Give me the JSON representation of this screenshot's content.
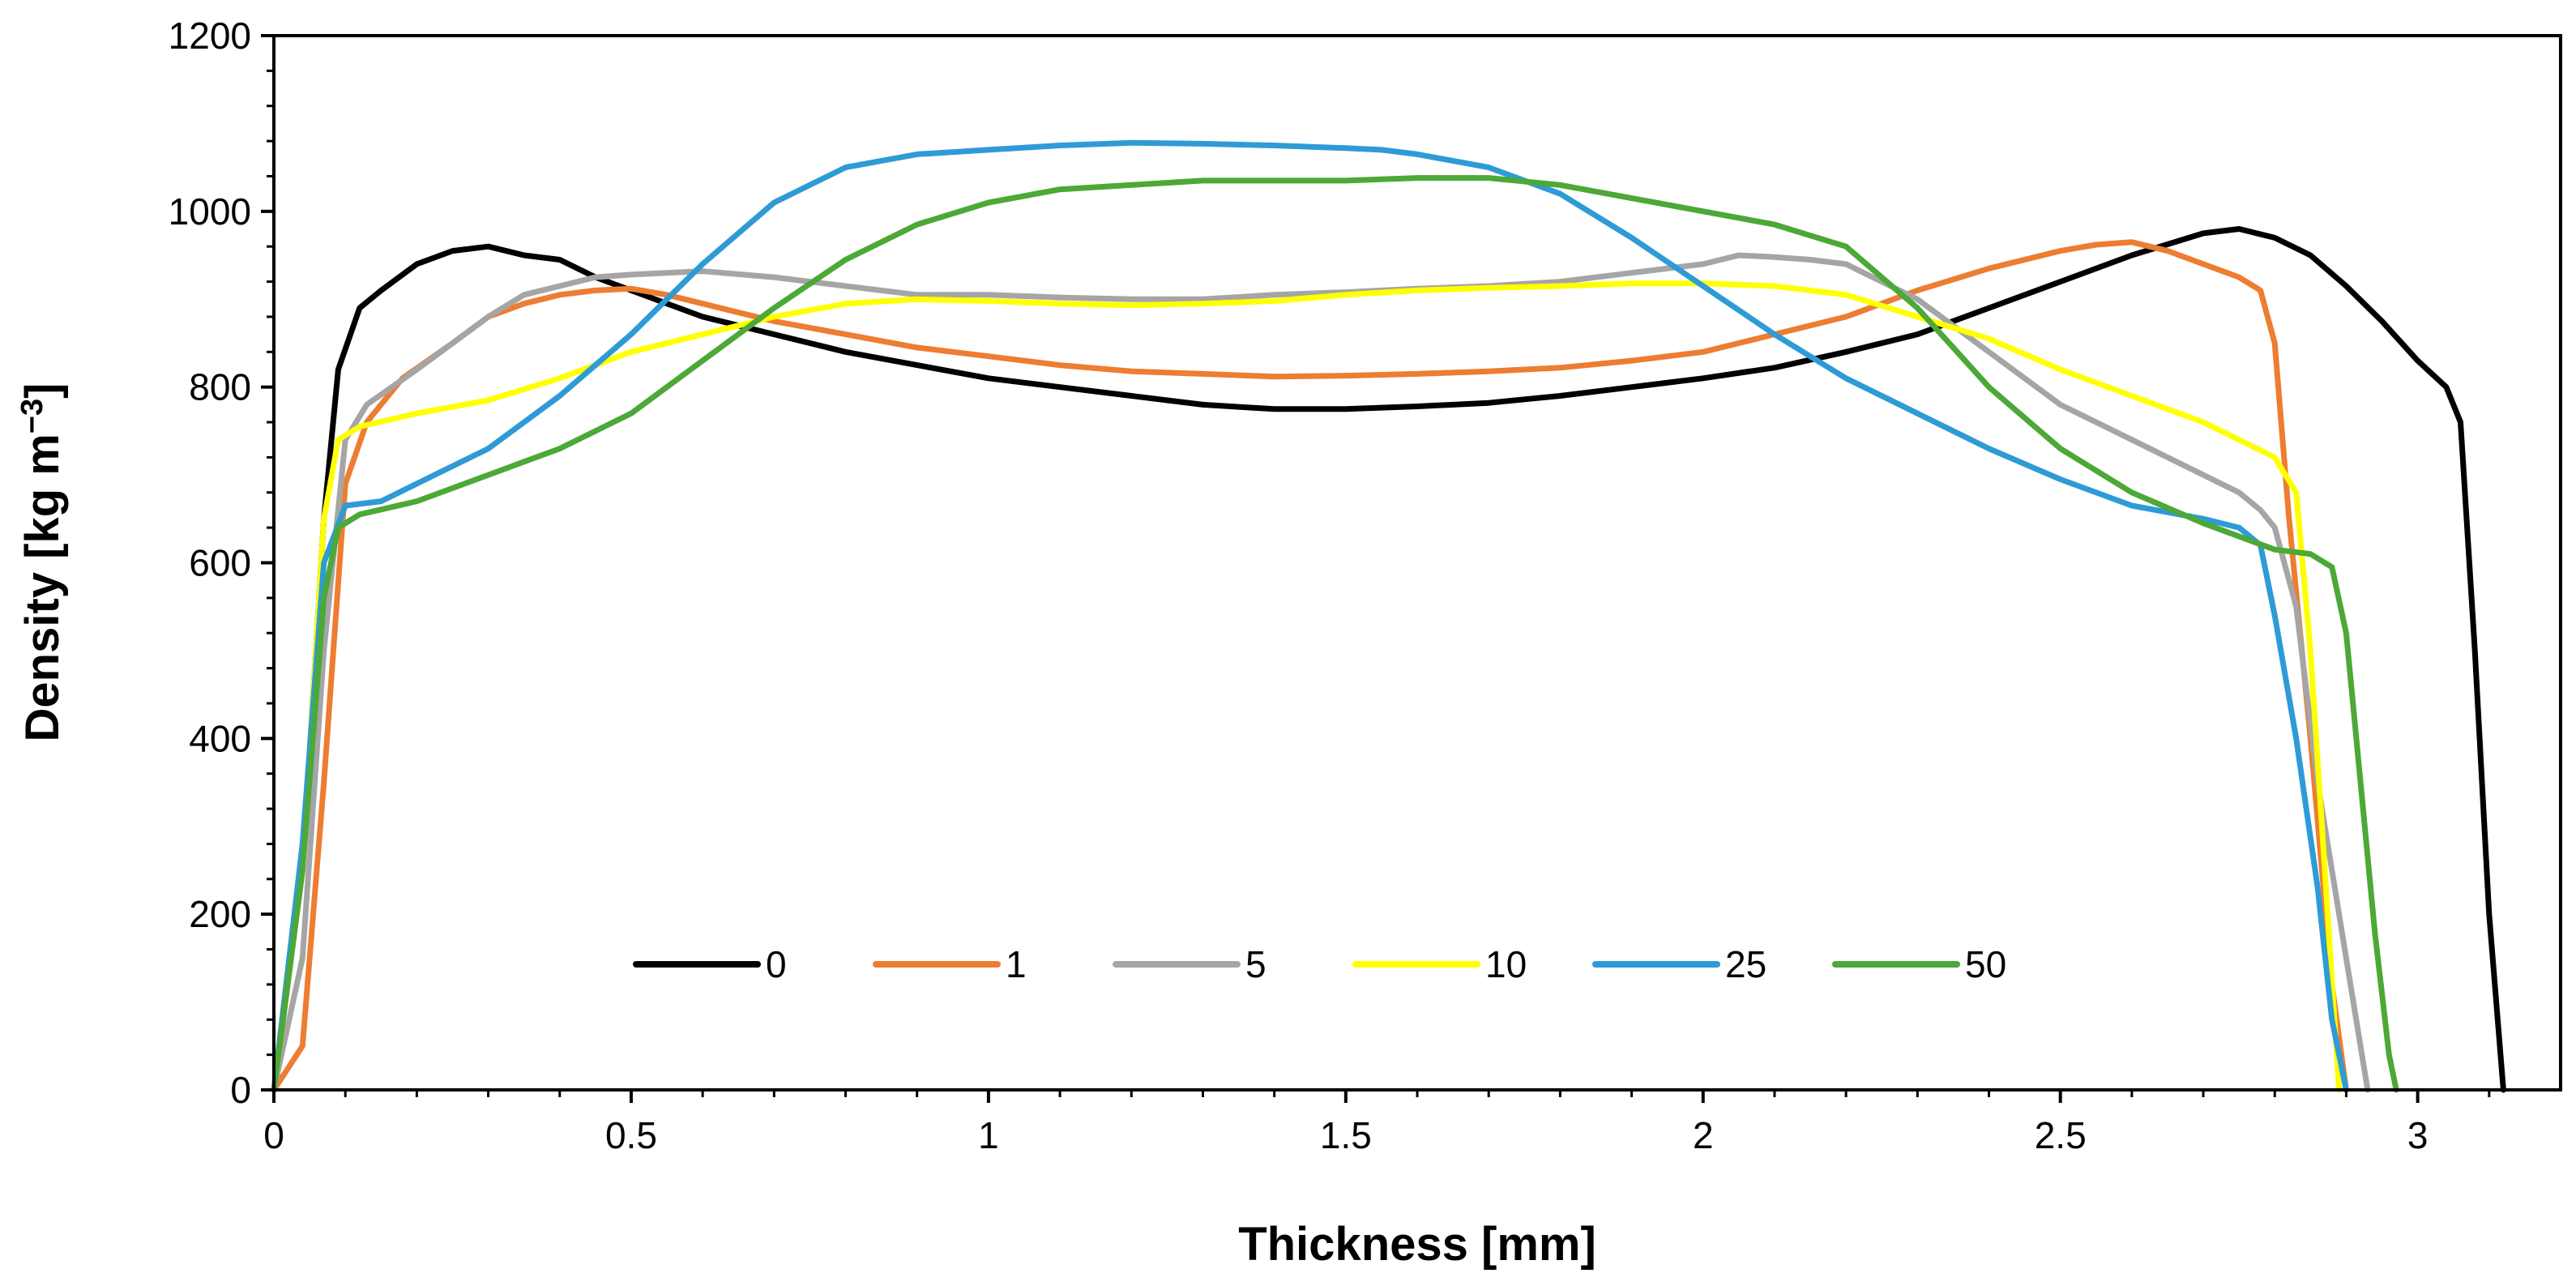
{
  "chart_data": {
    "type": "line",
    "title": "",
    "xlabel": "Thickness [mm]",
    "ylabel_main": "Density [kg m",
    "ylabel_sup": "−3",
    "ylabel_end": "]",
    "xlim": [
      0,
      3.2
    ],
    "ylim": [
      0,
      1200
    ],
    "x_ticks": [
      0,
      0.5,
      1,
      1.5,
      2,
      2.5,
      3
    ],
    "x_tick_labels": [
      "0",
      "0.5",
      "1",
      "1.5",
      "2",
      "2.5",
      "3"
    ],
    "y_ticks": [
      0,
      200,
      400,
      600,
      800,
      1000,
      1200
    ],
    "y_tick_labels": [
      "0",
      "200",
      "400",
      "600",
      "800",
      "1000",
      "1200"
    ],
    "grid": false,
    "legend_position": "bottom-center inside plot",
    "series": [
      {
        "name": "0",
        "color": "#000000",
        "points": [
          [
            0,
            0
          ],
          [
            0.04,
            250
          ],
          [
            0.07,
            650
          ],
          [
            0.09,
            820
          ],
          [
            0.12,
            890
          ],
          [
            0.15,
            910
          ],
          [
            0.2,
            940
          ],
          [
            0.25,
            955
          ],
          [
            0.3,
            960
          ],
          [
            0.35,
            950
          ],
          [
            0.4,
            945
          ],
          [
            0.45,
            925
          ],
          [
            0.5,
            910
          ],
          [
            0.6,
            880
          ],
          [
            0.7,
            860
          ],
          [
            0.8,
            840
          ],
          [
            0.9,
            825
          ],
          [
            1.0,
            810
          ],
          [
            1.1,
            800
          ],
          [
            1.2,
            790
          ],
          [
            1.3,
            780
          ],
          [
            1.4,
            775
          ],
          [
            1.5,
            775
          ],
          [
            1.6,
            778
          ],
          [
            1.7,
            782
          ],
          [
            1.8,
            790
          ],
          [
            1.9,
            800
          ],
          [
            2.0,
            810
          ],
          [
            2.1,
            822
          ],
          [
            2.2,
            840
          ],
          [
            2.3,
            860
          ],
          [
            2.4,
            890
          ],
          [
            2.5,
            920
          ],
          [
            2.6,
            950
          ],
          [
            2.7,
            975
          ],
          [
            2.75,
            980
          ],
          [
            2.8,
            970
          ],
          [
            2.85,
            950
          ],
          [
            2.9,
            915
          ],
          [
            2.95,
            875
          ],
          [
            3.0,
            830
          ],
          [
            3.04,
            800
          ],
          [
            3.06,
            760
          ],
          [
            3.08,
            500
          ],
          [
            3.1,
            200
          ],
          [
            3.12,
            0
          ]
        ]
      },
      {
        "name": "1",
        "color": "#ED7D31",
        "points": [
          [
            0,
            0
          ],
          [
            0.04,
            50
          ],
          [
            0.07,
            350
          ],
          [
            0.1,
            690
          ],
          [
            0.13,
            760
          ],
          [
            0.18,
            810
          ],
          [
            0.25,
            850
          ],
          [
            0.3,
            880
          ],
          [
            0.35,
            895
          ],
          [
            0.4,
            905
          ],
          [
            0.45,
            910
          ],
          [
            0.5,
            912
          ],
          [
            0.55,
            905
          ],
          [
            0.6,
            895
          ],
          [
            0.7,
            875
          ],
          [
            0.8,
            860
          ],
          [
            0.9,
            845
          ],
          [
            1.0,
            835
          ],
          [
            1.1,
            825
          ],
          [
            1.2,
            818
          ],
          [
            1.3,
            815
          ],
          [
            1.4,
            812
          ],
          [
            1.5,
            813
          ],
          [
            1.6,
            815
          ],
          [
            1.7,
            818
          ],
          [
            1.8,
            822
          ],
          [
            1.9,
            830
          ],
          [
            2.0,
            840
          ],
          [
            2.1,
            860
          ],
          [
            2.2,
            880
          ],
          [
            2.3,
            910
          ],
          [
            2.4,
            935
          ],
          [
            2.5,
            955
          ],
          [
            2.55,
            962
          ],
          [
            2.6,
            965
          ],
          [
            2.65,
            955
          ],
          [
            2.7,
            940
          ],
          [
            2.75,
            925
          ],
          [
            2.78,
            910
          ],
          [
            2.8,
            850
          ],
          [
            2.82,
            650
          ],
          [
            2.85,
            400
          ],
          [
            2.88,
            120
          ],
          [
            2.9,
            0
          ]
        ]
      },
      {
        "name": "5",
        "color": "#A5A5A5",
        "points": [
          [
            0,
            0
          ],
          [
            0.04,
            150
          ],
          [
            0.07,
            500
          ],
          [
            0.1,
            740
          ],
          [
            0.13,
            780
          ],
          [
            0.2,
            820
          ],
          [
            0.25,
            850
          ],
          [
            0.3,
            880
          ],
          [
            0.35,
            905
          ],
          [
            0.4,
            915
          ],
          [
            0.45,
            925
          ],
          [
            0.5,
            928
          ],
          [
            0.6,
            932
          ],
          [
            0.7,
            925
          ],
          [
            0.8,
            915
          ],
          [
            0.9,
            905
          ],
          [
            1.0,
            905
          ],
          [
            1.1,
            902
          ],
          [
            1.2,
            900
          ],
          [
            1.3,
            900
          ],
          [
            1.4,
            905
          ],
          [
            1.5,
            908
          ],
          [
            1.6,
            912
          ],
          [
            1.7,
            915
          ],
          [
            1.8,
            920
          ],
          [
            1.9,
            930
          ],
          [
            2.0,
            940
          ],
          [
            2.05,
            950
          ],
          [
            2.1,
            948
          ],
          [
            2.15,
            945
          ],
          [
            2.2,
            940
          ],
          [
            2.25,
            920
          ],
          [
            2.3,
            900
          ],
          [
            2.35,
            870
          ],
          [
            2.4,
            840
          ],
          [
            2.45,
            810
          ],
          [
            2.5,
            780
          ],
          [
            2.55,
            760
          ],
          [
            2.6,
            740
          ],
          [
            2.65,
            720
          ],
          [
            2.7,
            700
          ],
          [
            2.75,
            680
          ],
          [
            2.78,
            660
          ],
          [
            2.8,
            640
          ],
          [
            2.83,
            550
          ],
          [
            2.86,
            350
          ],
          [
            2.9,
            150
          ],
          [
            2.93,
            0
          ]
        ]
      },
      {
        "name": "10",
        "color": "#FFFF00",
        "points": [
          [
            0,
            0
          ],
          [
            0.04,
            250
          ],
          [
            0.07,
            650
          ],
          [
            0.09,
            740
          ],
          [
            0.12,
            755
          ],
          [
            0.2,
            770
          ],
          [
            0.3,
            785
          ],
          [
            0.4,
            810
          ],
          [
            0.5,
            840
          ],
          [
            0.6,
            860
          ],
          [
            0.7,
            880
          ],
          [
            0.8,
            895
          ],
          [
            0.9,
            900
          ],
          [
            1.0,
            898
          ],
          [
            1.1,
            895
          ],
          [
            1.2,
            893
          ],
          [
            1.3,
            895
          ],
          [
            1.4,
            898
          ],
          [
            1.5,
            905
          ],
          [
            1.6,
            910
          ],
          [
            1.7,
            913
          ],
          [
            1.8,
            915
          ],
          [
            1.9,
            918
          ],
          [
            2.0,
            918
          ],
          [
            2.1,
            915
          ],
          [
            2.2,
            905
          ],
          [
            2.3,
            880
          ],
          [
            2.4,
            855
          ],
          [
            2.5,
            820
          ],
          [
            2.6,
            790
          ],
          [
            2.7,
            760
          ],
          [
            2.75,
            740
          ],
          [
            2.8,
            720
          ],
          [
            2.83,
            680
          ],
          [
            2.85,
            500
          ],
          [
            2.87,
            250
          ],
          [
            2.89,
            0
          ]
        ]
      },
      {
        "name": "25",
        "color": "#2E9BD6",
        "points": [
          [
            0,
            0
          ],
          [
            0.04,
            280
          ],
          [
            0.07,
            600
          ],
          [
            0.1,
            665
          ],
          [
            0.15,
            670
          ],
          [
            0.2,
            690
          ],
          [
            0.3,
            730
          ],
          [
            0.4,
            790
          ],
          [
            0.5,
            860
          ],
          [
            0.6,
            940
          ],
          [
            0.65,
            975
          ],
          [
            0.7,
            1010
          ],
          [
            0.8,
            1050
          ],
          [
            0.9,
            1065
          ],
          [
            1.0,
            1070
          ],
          [
            1.1,
            1075
          ],
          [
            1.2,
            1078
          ],
          [
            1.3,
            1077
          ],
          [
            1.4,
            1075
          ],
          [
            1.5,
            1072
          ],
          [
            1.55,
            1070
          ],
          [
            1.6,
            1065
          ],
          [
            1.7,
            1050
          ],
          [
            1.8,
            1020
          ],
          [
            1.9,
            970
          ],
          [
            2.0,
            915
          ],
          [
            2.1,
            860
          ],
          [
            2.2,
            810
          ],
          [
            2.3,
            770
          ],
          [
            2.4,
            730
          ],
          [
            2.5,
            695
          ],
          [
            2.6,
            665
          ],
          [
            2.7,
            650
          ],
          [
            2.75,
            640
          ],
          [
            2.78,
            620
          ],
          [
            2.8,
            540
          ],
          [
            2.83,
            400
          ],
          [
            2.86,
            230
          ],
          [
            2.88,
            80
          ],
          [
            2.9,
            0
          ]
        ]
      },
      {
        "name": "50",
        "color": "#4CA837",
        "points": [
          [
            0,
            0
          ],
          [
            0.04,
            250
          ],
          [
            0.07,
            560
          ],
          [
            0.09,
            640
          ],
          [
            0.12,
            655
          ],
          [
            0.2,
            670
          ],
          [
            0.3,
            700
          ],
          [
            0.4,
            730
          ],
          [
            0.5,
            770
          ],
          [
            0.6,
            830
          ],
          [
            0.7,
            890
          ],
          [
            0.8,
            945
          ],
          [
            0.9,
            985
          ],
          [
            1.0,
            1010
          ],
          [
            1.1,
            1025
          ],
          [
            1.2,
            1030
          ],
          [
            1.3,
            1035
          ],
          [
            1.4,
            1035
          ],
          [
            1.5,
            1035
          ],
          [
            1.6,
            1038
          ],
          [
            1.7,
            1038
          ],
          [
            1.8,
            1030
          ],
          [
            1.9,
            1015
          ],
          [
            2.0,
            1000
          ],
          [
            2.1,
            985
          ],
          [
            2.2,
            960
          ],
          [
            2.3,
            890
          ],
          [
            2.4,
            800
          ],
          [
            2.5,
            730
          ],
          [
            2.6,
            680
          ],
          [
            2.7,
            645
          ],
          [
            2.75,
            630
          ],
          [
            2.8,
            615
          ],
          [
            2.85,
            610
          ],
          [
            2.88,
            595
          ],
          [
            2.9,
            520
          ],
          [
            2.92,
            350
          ],
          [
            2.94,
            180
          ],
          [
            2.96,
            40
          ],
          [
            2.97,
            0
          ]
        ]
      }
    ]
  }
}
